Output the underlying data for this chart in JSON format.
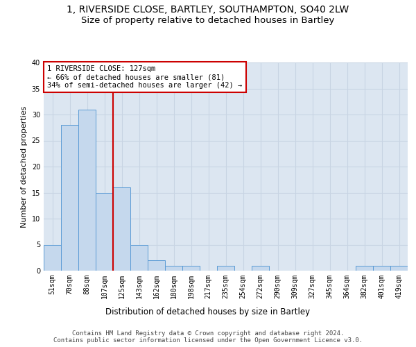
{
  "title_line1": "1, RIVERSIDE CLOSE, BARTLEY, SOUTHAMPTON, SO40 2LW",
  "title_line2": "Size of property relative to detached houses in Bartley",
  "xlabel": "Distribution of detached houses by size in Bartley",
  "ylabel": "Number of detached properties",
  "bar_categories": [
    "51sqm",
    "70sqm",
    "88sqm",
    "107sqm",
    "125sqm",
    "143sqm",
    "162sqm",
    "180sqm",
    "198sqm",
    "217sqm",
    "235sqm",
    "254sqm",
    "272sqm",
    "290sqm",
    "309sqm",
    "327sqm",
    "345sqm",
    "364sqm",
    "382sqm",
    "401sqm",
    "419sqm"
  ],
  "bar_values": [
    5,
    28,
    31,
    15,
    16,
    5,
    2,
    1,
    1,
    0,
    1,
    0,
    1,
    0,
    0,
    0,
    0,
    0,
    1,
    1,
    1
  ],
  "bar_color": "#c5d8ed",
  "bar_edge_color": "#5b9bd5",
  "vline_x": 3.5,
  "property_line_label": "1 RIVERSIDE CLOSE: 127sqm",
  "annotation_line1": "← 66% of detached houses are smaller (81)",
  "annotation_line2": "34% of semi-detached houses are larger (42) →",
  "annotation_box_color": "#ffffff",
  "annotation_box_edge_color": "#cc0000",
  "vline_color": "#cc0000",
  "ylim": [
    0,
    40
  ],
  "yticks": [
    0,
    5,
    10,
    15,
    20,
    25,
    30,
    35,
    40
  ],
  "grid_color": "#c8d4e3",
  "background_color": "#dce6f1",
  "footer_line1": "Contains HM Land Registry data © Crown copyright and database right 2024.",
  "footer_line2": "Contains public sector information licensed under the Open Government Licence v3.0.",
  "title_fontsize": 10,
  "subtitle_fontsize": 9.5,
  "xlabel_fontsize": 8.5,
  "ylabel_fontsize": 8,
  "tick_fontsize": 7,
  "footer_fontsize": 6.5,
  "annotation_fontsize": 7.5
}
